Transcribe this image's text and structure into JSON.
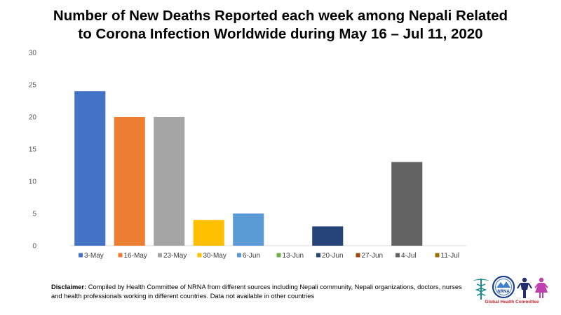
{
  "title_line1": "Number of New Deaths Reported each week among Nepali Related",
  "title_line2": "to Corona Infection Worldwide during May 16 – Jul 11, 2020",
  "disclaimer": {
    "label": "Disclaimer:",
    "text": "Compiled by Health Committee of NRNA from different sources including Nepali community, Nepali organizations, doctors, nurses and health professionals working in different countries. Data not available in other countries"
  },
  "logo": {
    "emblem_text": "NRNA",
    "caption": "Global Health Committee"
  },
  "colors": {
    "3-May": "#4472C4",
    "16-May": "#ED7D31",
    "23-May": "#A5A5A5",
    "30-May": "#FFC000",
    "6-Jun": "#5B9BD5",
    "13-Jun": "#70AD47",
    "20-Jun": "#264478",
    "27-Jun": "#9E480E",
    "4-Jul": "#636363",
    "11-Jul": "#997300"
  },
  "chart_data": {
    "type": "bar",
    "title": "Number of New Deaths Reported each week among Nepali Related to Corona Infection Worldwide during May 16 – Jul 11, 2020",
    "xlabel": "",
    "ylabel": "",
    "ylim": [
      0,
      30
    ],
    "yticks": [
      0,
      5,
      10,
      15,
      20,
      25,
      30
    ],
    "grid": false,
    "legend_position": "bottom",
    "categories": [
      "3-May",
      "16-May",
      "23-May",
      "30-May",
      "6-Jun",
      "13-Jun",
      "20-Jun",
      "27-Jun",
      "4-Jul",
      "11-Jul"
    ],
    "values": [
      24,
      20,
      20,
      4,
      5,
      0,
      3,
      0,
      13,
      0
    ]
  }
}
